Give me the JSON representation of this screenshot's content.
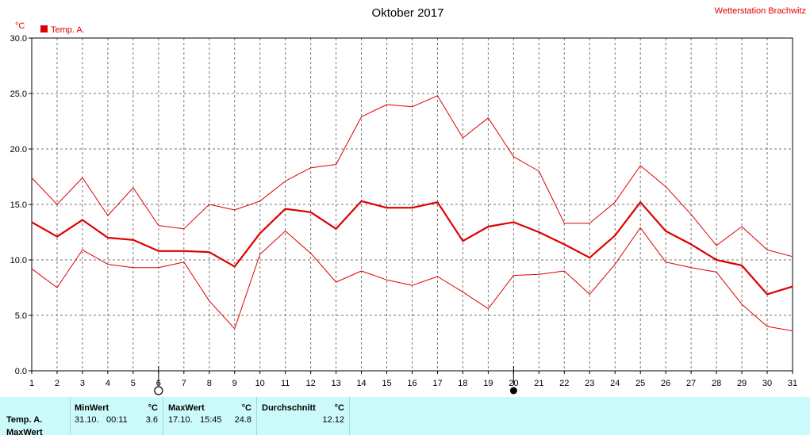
{
  "header": {
    "title": "Oktober 2017",
    "station": "Wetterstation Brachwitz",
    "unit": "°C"
  },
  "colors": {
    "series": "#dd0000",
    "station": "#e00000",
    "grid": "#777777",
    "stats_bg": "#ccfafa"
  },
  "icons": {
    "first_quarter": "moon-first-quarter-icon",
    "full_moon": "full-moon-icon"
  },
  "moon_phase_days": {
    "open_circle": 6,
    "filled_circle": 20
  },
  "chart_data": {
    "type": "line",
    "title": "Oktober 2017",
    "xlabel": "",
    "ylabel": "°C",
    "xlim": [
      1,
      31
    ],
    "ylim": [
      0,
      30
    ],
    "yticks": [
      "0.0",
      "5.0",
      "10.0",
      "15.0",
      "20.0",
      "25.0",
      "30.0"
    ],
    "x": [
      1,
      2,
      3,
      4,
      5,
      6,
      7,
      8,
      9,
      10,
      11,
      12,
      13,
      14,
      15,
      16,
      17,
      18,
      19,
      20,
      21,
      22,
      23,
      24,
      25,
      26,
      27,
      28,
      29,
      30,
      31
    ],
    "grid": true,
    "legend": "top-left",
    "legend_entries": [
      "Temp. A."
    ],
    "series": [
      {
        "name": "Temp. A.",
        "role": "mean",
        "values": [
          13.4,
          12.1,
          13.6,
          12.0,
          11.8,
          10.8,
          10.8,
          10.7,
          9.4,
          12.4,
          14.6,
          14.3,
          12.8,
          15.3,
          14.7,
          14.7,
          15.2,
          11.7,
          13.0,
          13.4,
          12.5,
          11.4,
          10.2,
          12.2,
          15.2,
          12.6,
          11.4,
          10.0,
          9.5,
          6.9,
          7.6
        ]
      },
      {
        "role": "max",
        "values": [
          17.4,
          15.0,
          17.4,
          14.0,
          16.5,
          13.1,
          12.8,
          15.0,
          14.5,
          15.3,
          17.1,
          18.3,
          18.6,
          22.9,
          24.0,
          23.8,
          24.8,
          21.0,
          22.8,
          19.3,
          18.0,
          13.3,
          13.3,
          15.2,
          18.5,
          16.6,
          14.1,
          11.3,
          13.0,
          10.9,
          10.3
        ]
      },
      {
        "role": "min",
        "values": [
          9.2,
          7.5,
          10.9,
          9.6,
          9.3,
          9.3,
          9.8,
          6.3,
          3.8,
          10.5,
          12.6,
          10.6,
          8.0,
          9.0,
          8.2,
          7.7,
          8.5,
          7.1,
          5.6,
          8.6,
          8.7,
          9.0,
          6.9,
          9.6,
          12.9,
          9.8,
          9.3,
          8.9,
          6.0,
          4.0,
          3.6
        ]
      }
    ]
  },
  "stats": {
    "headers": {
      "min": "MinWert",
      "max": "MaxWert",
      "avg": "Durchschnitt",
      "unit": "°C"
    },
    "row_label": "Temp. A.",
    "second_row_label": "MaxWert",
    "min": {
      "date": "31.10.",
      "time": "00:11",
      "value": "3.6"
    },
    "max": {
      "date": "17.10.",
      "time": "15:45",
      "value": "24.8"
    },
    "avg": {
      "value": "12.12"
    }
  }
}
